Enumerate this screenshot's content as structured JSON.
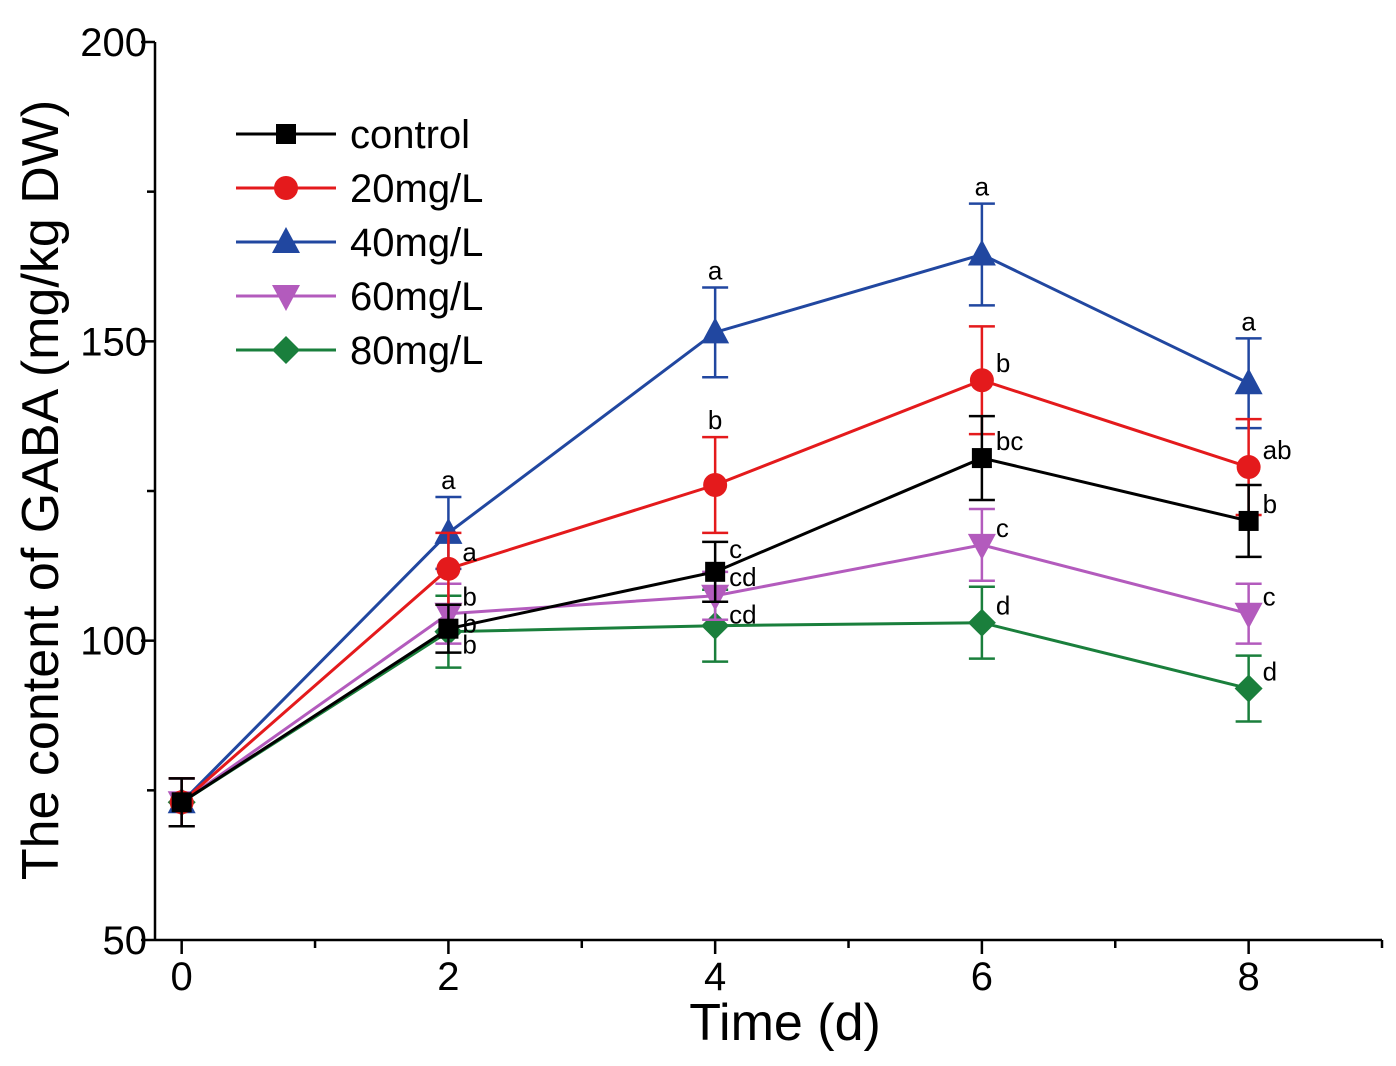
{
  "chart_data": {
    "type": "line",
    "title": "",
    "xlabel": "Time (d)",
    "ylabel": "The content of GABA (mg/kg DW)",
    "x": [
      0,
      2,
      4,
      6,
      8
    ],
    "xlim": [
      -0.2,
      9
    ],
    "ylim": [
      50,
      200
    ],
    "x_ticks": [
      0,
      2,
      4,
      6,
      8
    ],
    "x_minor_ticks": [
      1,
      3,
      5,
      7,
      9
    ],
    "y_ticks": [
      50,
      100,
      150,
      200
    ],
    "y_minor_ticks": [
      75,
      125,
      175
    ],
    "grid": false,
    "legend_position": "top-left",
    "series": [
      {
        "name": "control",
        "color": "#000000",
        "marker": "square",
        "values": [
          73,
          102,
          111.5,
          130.5,
          120
        ],
        "errors": [
          4,
          4,
          5,
          7,
          6
        ],
        "labels": [
          "",
          "b",
          "c",
          "bc",
          "b"
        ]
      },
      {
        "name": "20mg/L",
        "color": "#e41a1c",
        "marker": "circle",
        "values": [
          73,
          112,
          126,
          143.5,
          129
        ],
        "errors": [
          4,
          6,
          8,
          9,
          8
        ],
        "labels": [
          "",
          "a",
          "b",
          "b",
          "ab"
        ]
      },
      {
        "name": "40mg/L",
        "color": "#2147a0",
        "marker": "triangle-up",
        "values": [
          73,
          118,
          151.5,
          164.5,
          143
        ],
        "errors": [
          4,
          6,
          7.5,
          8.5,
          7.5
        ],
        "labels": [
          "",
          "a",
          "a",
          "a",
          "a"
        ]
      },
      {
        "name": "60mg/L",
        "color": "#b35bbd",
        "marker": "triangle-down",
        "values": [
          73,
          104.5,
          107.5,
          116,
          104.5
        ],
        "errors": [
          4,
          5,
          4,
          6,
          5
        ],
        "labels": [
          "",
          "b",
          "cd",
          "c",
          "c"
        ]
      },
      {
        "name": "80mg/L",
        "color": "#1a7f3c",
        "marker": "diamond",
        "values": [
          73,
          101.5,
          102.5,
          103,
          92
        ],
        "errors": [
          4,
          6,
          6,
          6,
          5.5
        ],
        "labels": [
          "",
          "b",
          "cd",
          "d",
          "d"
        ]
      }
    ]
  }
}
